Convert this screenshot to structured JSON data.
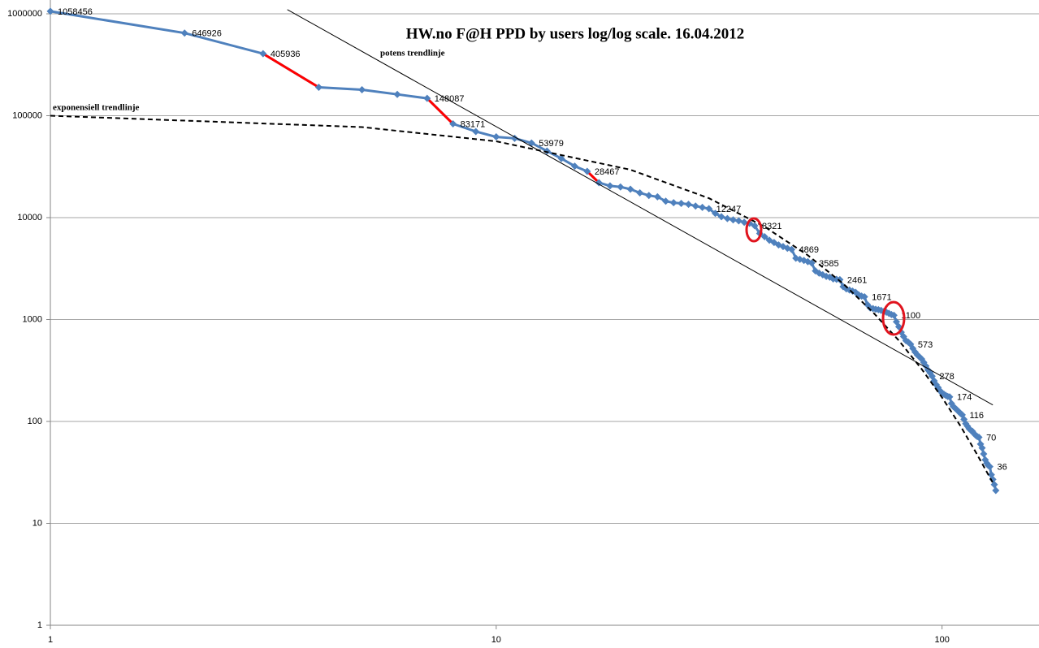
{
  "chart_data": {
    "type": "line",
    "title": "HW.no F@H PPD by users log/log scale. 16.04.2012",
    "log_x": true,
    "log_y": true,
    "grid": true,
    "xlim": [
      1,
      165
    ],
    "xticks": [
      1,
      10,
      100
    ],
    "ylim": [
      1,
      1000000
    ],
    "yticks": [
      1,
      10,
      100,
      1000,
      10000,
      100000,
      1000000
    ],
    "highlight_color": "#ff0000",
    "highlight_after": [
      2,
      6,
      15
    ],
    "labeled_points": [
      0,
      1,
      2,
      6,
      7,
      11,
      15,
      29,
      37,
      45,
      50,
      58,
      66,
      77,
      84,
      94,
      103,
      110,
      120,
      127
    ],
    "series": [
      {
        "color": "#4f81bd",
        "style": "marker-line",
        "x": [
          1,
          2,
          3,
          4,
          5,
          6,
          7,
          8,
          9,
          10,
          11,
          12,
          13,
          14,
          15,
          16,
          17,
          18,
          19,
          20,
          21,
          22,
          23,
          24,
          25,
          26,
          27,
          28,
          29,
          30,
          31,
          32,
          33,
          34,
          35,
          36,
          37,
          38,
          39,
          40,
          41,
          42,
          43,
          44,
          45,
          46,
          47,
          48,
          49,
          50,
          51,
          52,
          53,
          54,
          55,
          56,
          57,
          58,
          59,
          60,
          61,
          62,
          63,
          64,
          65,
          66,
          67,
          68,
          69,
          70,
          71,
          72,
          73,
          74,
          75,
          76,
          77,
          78,
          79,
          80,
          81,
          82,
          83,
          84,
          85,
          86,
          87,
          88,
          89,
          90,
          91,
          92,
          93,
          94,
          95,
          96,
          97,
          98,
          99,
          100,
          101,
          102,
          103,
          104,
          105,
          106,
          107,
          108,
          109,
          110,
          111,
          112,
          113,
          114,
          115,
          116,
          117,
          118,
          119,
          120,
          121,
          122,
          123,
          124,
          125,
          126,
          127,
          128,
          129,
          130,
          131,
          132
        ],
        "values": [
          1058456,
          646926,
          405936,
          190000,
          180000,
          162000,
          148087,
          83171,
          70000,
          62000,
          60000,
          53979,
          45000,
          38000,
          32000,
          28467,
          22000,
          20500,
          20000,
          19000,
          17500,
          16500,
          16000,
          14500,
          14000,
          13800,
          13500,
          13000,
          12600,
          12247,
          11000,
          10200,
          9800,
          9500,
          9300,
          9000,
          8800,
          8321,
          7000,
          6500,
          6000,
          5700,
          5400,
          5200,
          5000,
          4869,
          4000,
          3900,
          3800,
          3700,
          3585,
          3000,
          2850,
          2750,
          2650,
          2600,
          2500,
          2480,
          2461,
          2100,
          2000,
          1950,
          1900,
          1850,
          1750,
          1700,
          1671,
          1400,
          1300,
          1280,
          1260,
          1250,
          1230,
          1200,
          1180,
          1150,
          1120,
          1100,
          950,
          850,
          750,
          680,
          620,
          600,
          573,
          520,
          480,
          450,
          430,
          410,
          380,
          350,
          320,
          300,
          278,
          250,
          230,
          215,
          200,
          190,
          185,
          180,
          176,
          174,
          150,
          140,
          135,
          130,
          125,
          120,
          116,
          105,
          95,
          90,
          85,
          82,
          80,
          76,
          73,
          71,
          70,
          60,
          55,
          48,
          42,
          39,
          37,
          36,
          30,
          27,
          24,
          21
        ]
      },
      {
        "name": "potens trendlinje",
        "color": "#000000",
        "style": "thin",
        "x": [
          3.4,
          130
        ],
        "values": [
          1100000,
          145
        ]
      },
      {
        "name": "exponensiell trendlinje",
        "color": "#000000",
        "style": "dashed",
        "x": [
          1,
          5,
          10,
          20,
          30,
          40,
          50,
          60,
          70,
          80,
          90,
          100,
          110,
          120,
          130
        ],
        "values": [
          100000,
          77300,
          56100,
          29500,
          15500,
          8140,
          4280,
          2250,
          1180,
          622,
          327,
          172,
          90,
          47,
          25
        ]
      }
    ]
  }
}
